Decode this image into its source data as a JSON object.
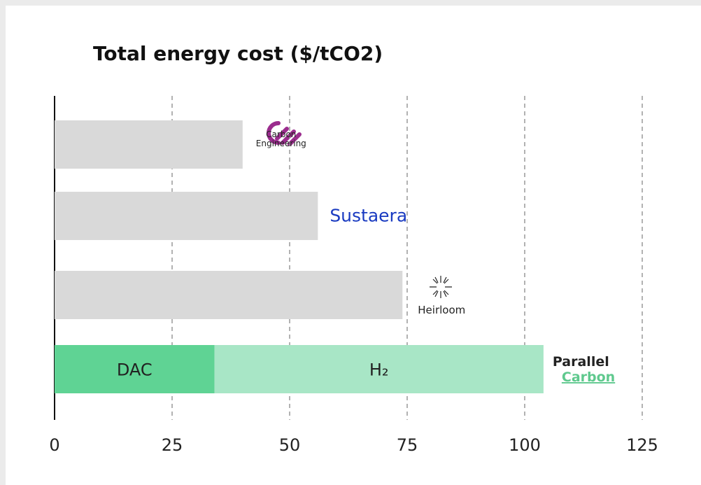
{
  "chart_data": {
    "type": "bar",
    "orientation": "horizontal",
    "title": "Total energy cost ($/tCO2)",
    "categories": [
      [
        "Carbon",
        "Engineering"
      ],
      [
        "Sustaera"
      ],
      [
        "Heirloom"
      ],
      [
        "Parallel",
        "Carbon"
      ]
    ],
    "values": [
      40,
      56,
      74,
      null
    ],
    "color": "#d9d9d9",
    "series": [
      {
        "name": "DAC",
        "color": "#5fd394",
        "values": [
          null,
          null,
          null,
          34
        ]
      },
      {
        "name": "H₂",
        "color": "#a8e6c6",
        "values": [
          null,
          null,
          null,
          70
        ]
      }
    ],
    "xlim": [
      0,
      125
    ],
    "xticks": [
      0,
      25,
      50,
      75,
      100,
      125
    ],
    "grid": true
  }
}
